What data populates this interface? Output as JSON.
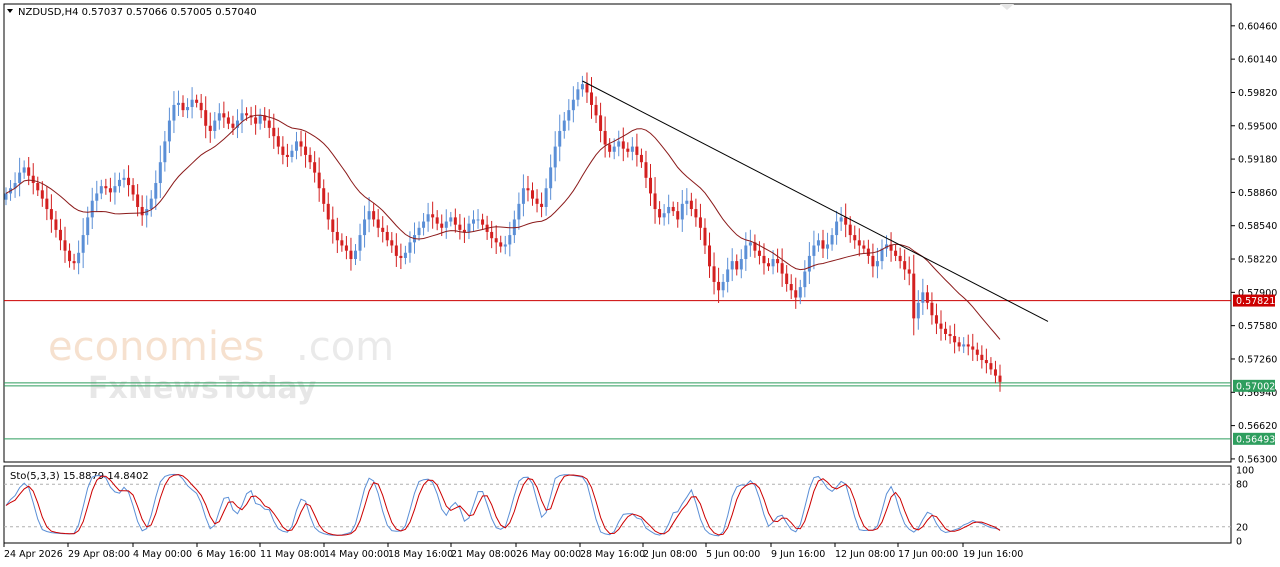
{
  "header": {
    "symbol_line": "NZDUSD,H4  0.57037 0.57066 0.57005 0.57040",
    "stoch_line": "Sto(5,3,3) 15.8879 14.8402"
  },
  "watermark": {
    "brand1": "economies",
    "brand1_suffix": ".com",
    "brand2": "FxNewsToday"
  },
  "colors": {
    "bull": "#5b8fd6",
    "bear": "#d32020",
    "ma": "#8b1a1a",
    "resistance": "#cc0000",
    "support": "#2e9e5e",
    "trendline": "#000000",
    "stoch_main": "#5b8fd6",
    "stoch_signal": "#cc0000"
  },
  "chart_data": {
    "type": "candlestick",
    "symbol": "NZDUSD",
    "timeframe": "H4",
    "ohlc_last": {
      "open": 0.57037,
      "high": 0.57066,
      "low": 0.57005,
      "close": 0.5704
    },
    "price_ticks": [
      "0.60460",
      "0.60140",
      "0.59820",
      "0.59500",
      "0.59180",
      "0.58860",
      "0.58540",
      "0.58220",
      "0.57900",
      "0.57580",
      "0.57260",
      "0.56940",
      "0.56620",
      "0.56300"
    ],
    "price_tick_values": [
      0.6046,
      0.6014,
      0.5982,
      0.595,
      0.5918,
      0.5886,
      0.5854,
      0.5822,
      0.579,
      0.5758,
      0.5726,
      0.5694,
      0.5662,
      0.563
    ],
    "ylim": [
      0.5628,
      0.6066
    ],
    "levels": [
      {
        "label": "0.57821",
        "value": 0.57821,
        "color": "resistance"
      },
      {
        "label": "0.57002",
        "value": 0.57002,
        "color": "support"
      },
      {
        "label": "0.56493",
        "value": 0.56493,
        "color": "support"
      }
    ],
    "support_band_upper": 0.5703,
    "trendline": [
      {
        "time": "28 May 16:00",
        "value": 0.5993
      },
      {
        "time": "end",
        "value": 0.5762
      }
    ],
    "x_tick_labels": [
      "24 Apr 2026",
      "29 Apr 08:00",
      "4 May 00:00",
      "6 May 16:00",
      "11 May 08:00",
      "14 May 00:00",
      "18 May 16:00",
      "21 May 08:00",
      "26 May 00:00",
      "28 May 16:00",
      "2 Jun 08:00",
      "5 Jun 00:00",
      "9 Jun 16:00",
      "12 Jun 08:00",
      "17 Jun 00:00",
      "19 Jun 16:00"
    ],
    "closes": [
      0.5885,
      0.589,
      0.5895,
      0.5905,
      0.591,
      0.5902,
      0.5895,
      0.5888,
      0.588,
      0.587,
      0.586,
      0.585,
      0.584,
      0.583,
      0.582,
      0.5818,
      0.5828,
      0.5845,
      0.5862,
      0.5878,
      0.5885,
      0.5892,
      0.589,
      0.5886,
      0.5892,
      0.5898,
      0.59,
      0.5893,
      0.5884,
      0.5872,
      0.5864,
      0.587,
      0.588,
      0.5895,
      0.5915,
      0.5935,
      0.5955,
      0.597,
      0.5972,
      0.5965,
      0.5968,
      0.5975,
      0.5972,
      0.5965,
      0.595,
      0.5945,
      0.5955,
      0.5962,
      0.5958,
      0.5952,
      0.5948,
      0.5955,
      0.5962,
      0.596,
      0.5958,
      0.5952,
      0.596,
      0.5955,
      0.5948,
      0.594,
      0.593,
      0.5922,
      0.592,
      0.5926,
      0.5935,
      0.593,
      0.5922,
      0.5915,
      0.5905,
      0.589,
      0.5875,
      0.586,
      0.5848,
      0.584,
      0.5835,
      0.583,
      0.5822,
      0.583,
      0.5845,
      0.586,
      0.5868,
      0.586,
      0.5852,
      0.5848,
      0.584,
      0.5835,
      0.5825,
      0.5823,
      0.5828,
      0.5838,
      0.5845,
      0.5852,
      0.5858,
      0.5865,
      0.5862,
      0.5856,
      0.5852,
      0.5858,
      0.5862,
      0.5855,
      0.585,
      0.5848,
      0.5856,
      0.586,
      0.586,
      0.5855,
      0.5848,
      0.5842,
      0.5838,
      0.5834,
      0.5836,
      0.5845,
      0.586,
      0.5875,
      0.589,
      0.5888,
      0.588,
      0.5875,
      0.5872,
      0.589,
      0.591,
      0.593,
      0.5945,
      0.5955,
      0.5965,
      0.5975,
      0.5985,
      0.599,
      0.5982,
      0.597,
      0.596,
      0.5945,
      0.5932,
      0.5925,
      0.593,
      0.5935,
      0.5928,
      0.5925,
      0.593,
      0.5922,
      0.5915,
      0.59,
      0.5885,
      0.587,
      0.5862,
      0.5866,
      0.5872,
      0.5868,
      0.586,
      0.5875,
      0.5878,
      0.587,
      0.5862,
      0.5852,
      0.5835,
      0.5815,
      0.58,
      0.5792,
      0.58,
      0.5812,
      0.582,
      0.5812,
      0.5822,
      0.5835,
      0.5838,
      0.583,
      0.5825,
      0.5818,
      0.5815,
      0.5822,
      0.5818,
      0.5808,
      0.5798,
      0.5792,
      0.5785,
      0.5795,
      0.581,
      0.5825,
      0.5835,
      0.584,
      0.5832,
      0.5836,
      0.5845,
      0.5858,
      0.5862,
      0.5855,
      0.5845,
      0.584,
      0.5835,
      0.5832,
      0.5825,
      0.5815,
      0.582,
      0.5832,
      0.5836,
      0.583,
      0.5825,
      0.582,
      0.5812,
      0.5808,
      0.5765,
      0.578,
      0.579,
      0.578,
      0.5768,
      0.576,
      0.5755,
      0.575,
      0.5748,
      0.5742,
      0.5738,
      0.574,
      0.5738,
      0.5735,
      0.573,
      0.5725,
      0.5722,
      0.5716,
      0.571,
      0.5704
    ],
    "stochastic": {
      "name": "Sto(5,3,3)",
      "main": 15.8879,
      "signal": 14.8402,
      "levels": [
        "100",
        "80",
        "20",
        "0"
      ],
      "level_values": [
        100,
        80,
        20,
        0
      ],
      "dashed_levels": [
        80,
        20
      ]
    }
  }
}
